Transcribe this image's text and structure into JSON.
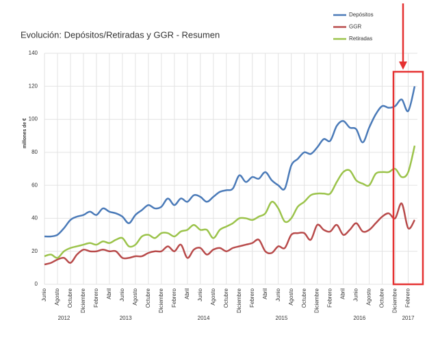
{
  "chart_data": {
    "type": "line",
    "title": "Evolución: Depósitos/Retiradas y GGR - Resumen",
    "y_label": "millones de €",
    "categories": [
      "Junio",
      null,
      "Agosto",
      null,
      "Octubre",
      null,
      "Diciembre",
      null,
      "Febrero",
      null,
      "Abril",
      null,
      "Junio",
      null,
      "Agosto",
      null,
      "Octubre",
      null,
      "Diciembre",
      null,
      "Febrero",
      null,
      "Abril",
      null,
      "Junio",
      null,
      "Agosto",
      null,
      "Octubre",
      null,
      "Diciembre",
      null,
      "Febrero",
      null,
      "Abril",
      null,
      "Junio",
      null,
      "Agosto",
      null,
      "Octubre",
      null,
      "Diciembre",
      null,
      "Febrero",
      null,
      "Abril",
      null,
      "Junio",
      null,
      "Agosto",
      null,
      "Octubre",
      null,
      "Diciembre",
      null,
      "Febrero",
      null
    ],
    "years": [
      "2012",
      "2013",
      "2014",
      "2015",
      "2016",
      "2017"
    ],
    "series": [
      {
        "name": "Depósitos",
        "color": "#4a7ab8",
        "values": [
          29,
          29,
          30,
          34,
          39,
          41,
          42,
          44,
          42,
          46,
          44,
          43,
          41,
          37,
          42,
          45,
          48,
          46,
          47,
          52,
          48,
          52,
          50,
          54,
          53,
          50,
          53,
          56,
          57,
          58,
          66,
          62,
          65,
          64,
          68,
          63,
          60,
          58,
          72,
          76,
          80,
          79,
          83,
          88,
          87,
          96,
          99,
          95,
          94,
          86,
          95,
          103,
          108,
          107,
          108,
          112,
          105,
          120
        ]
      },
      {
        "name": "GGR",
        "color": "#b84a4a",
        "values": [
          12,
          13,
          15,
          16,
          13,
          18,
          21,
          20,
          20,
          21,
          20,
          20,
          16,
          16,
          17,
          17,
          19,
          20,
          20,
          23,
          20,
          24,
          16,
          21,
          22,
          18,
          21,
          22,
          20,
          22,
          23,
          24,
          25,
          27,
          20,
          19,
          23,
          22,
          30,
          31,
          31,
          27,
          36,
          33,
          32,
          36,
          30,
          33,
          37,
          32,
          33,
          37,
          41,
          43,
          40,
          49,
          34,
          39
        ]
      },
      {
        "name": "Retiradas",
        "color": "#9bc34a",
        "values": [
          17,
          18,
          16,
          20,
          22,
          23,
          24,
          25,
          24,
          26,
          25,
          27,
          28,
          23,
          24,
          29,
          30,
          28,
          31,
          31,
          29,
          32,
          33,
          36,
          33,
          33,
          28,
          33,
          35,
          37,
          40,
          40,
          39,
          41,
          43,
          50,
          46,
          38,
          40,
          47,
          50,
          54,
          55,
          55,
          55,
          62,
          68,
          69,
          63,
          61,
          60,
          67,
          68,
          68,
          70,
          65,
          68,
          84
        ]
      }
    ],
    "ylim": [
      0,
      140
    ],
    "yticks": [
      0,
      20,
      40,
      60,
      80,
      100,
      120,
      140
    ],
    "grid": true
  }
}
